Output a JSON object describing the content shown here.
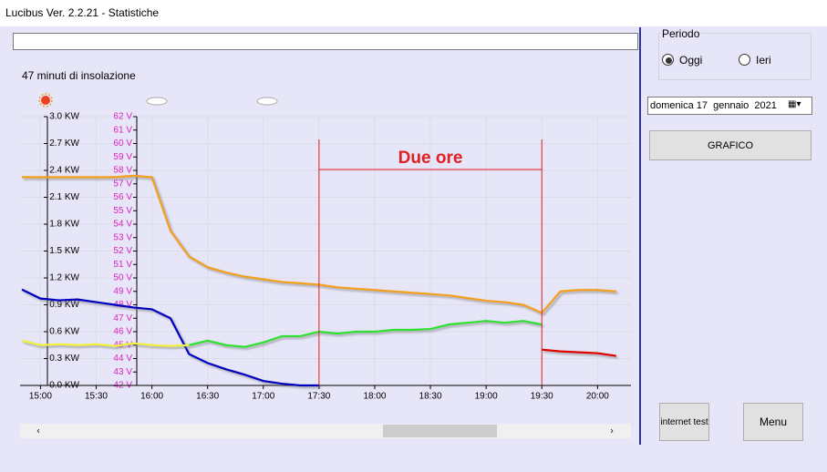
{
  "window": {
    "title": "Lucibus Ver. 2.2.21 - Statistiche"
  },
  "stats": {
    "sunshine": "47 minuti di insolazione"
  },
  "chart_data": {
    "type": "line",
    "x": [
      890,
      900,
      910,
      920,
      930,
      940,
      950,
      960,
      970,
      980,
      990,
      1000,
      1010,
      1020,
      1030,
      1040,
      1050,
      1060,
      1070,
      1080,
      1090,
      1100,
      1110,
      1120,
      1130,
      1140,
      1150,
      1160,
      1170,
      1180,
      1190,
      1200,
      1210
    ],
    "xlim": [
      889,
      1218
    ],
    "xticks": [
      {
        "value": 900,
        "label": "15:00"
      },
      {
        "value": 930,
        "label": "15:30"
      },
      {
        "value": 960,
        "label": "16:00"
      },
      {
        "value": 990,
        "label": "16:30"
      },
      {
        "value": 1020,
        "label": "17:00"
      },
      {
        "value": 1050,
        "label": "17:30"
      },
      {
        "value": 1080,
        "label": "18:00"
      },
      {
        "value": 1110,
        "label": "18:30"
      },
      {
        "value": 1140,
        "label": "19:00"
      },
      {
        "value": 1170,
        "label": "19:30"
      },
      {
        "value": 1200,
        "label": "20:00"
      }
    ],
    "ylim": [
      0,
      3
    ],
    "yticks": [
      {
        "value": 0,
        "label": "0.0 KW"
      },
      {
        "value": 0.3,
        "label": "0.3 KW"
      },
      {
        "value": 0.6,
        "label": "0.6 KW"
      },
      {
        "value": 0.9,
        "label": "0.9 KW"
      },
      {
        "value": 1.2,
        "label": "1.2 KW"
      },
      {
        "value": 1.5,
        "label": "1.5 KW"
      },
      {
        "value": 1.8,
        "label": "1.8 KW"
      },
      {
        "value": 2.1,
        "label": "2.1 KW"
      },
      {
        "value": 2.4,
        "label": "2.4 KW"
      },
      {
        "value": 2.7,
        "label": "2.7 KW"
      },
      {
        "value": 3,
        "label": "3.0 KW"
      }
    ],
    "y2lim": [
      42,
      62
    ],
    "y2ticks": [
      {
        "value": 42,
        "label": "42 V"
      },
      {
        "value": 43,
        "label": "43 V"
      },
      {
        "value": 44,
        "label": "44 V"
      },
      {
        "value": 45,
        "label": "45 V"
      },
      {
        "value": 46,
        "label": "46 V"
      },
      {
        "value": 47,
        "label": "47 V"
      },
      {
        "value": 48,
        "label": "48 V"
      },
      {
        "value": 49,
        "label": "49 V"
      },
      {
        "value": 50,
        "label": "50 V"
      },
      {
        "value": 51,
        "label": "51 V"
      },
      {
        "value": 52,
        "label": "52 V"
      },
      {
        "value": 53,
        "label": "53 V"
      },
      {
        "value": 54,
        "label": "54 V"
      },
      {
        "value": 55,
        "label": "55 V"
      },
      {
        "value": 56,
        "label": "56 V"
      },
      {
        "value": 57,
        "label": "57 V"
      },
      {
        "value": 58,
        "label": "58 V"
      },
      {
        "value": 59,
        "label": "59 V"
      },
      {
        "value": 60,
        "label": "60 V"
      },
      {
        "value": 61,
        "label": "61 V"
      },
      {
        "value": 62,
        "label": "62 V"
      }
    ],
    "grid": true,
    "series": [
      {
        "color": "#f2a01e",
        "axis": "y2",
        "values": [
          57.5,
          57.5,
          57.5,
          57.5,
          57.5,
          57.5,
          57.6,
          57.5,
          53.5,
          51.6,
          50.8,
          50.4,
          50.1,
          49.9,
          49.7,
          49.6,
          49.5,
          49.3,
          49.2,
          49.1,
          49.0,
          48.9,
          48.8,
          48.7,
          48.5,
          48.3,
          48.2,
          48.0,
          47.4,
          49.0,
          49.1,
          49.1,
          49.0
        ]
      },
      {
        "color": "#0000c0",
        "values": [
          1.07,
          0.97,
          0.95,
          0.96,
          0.93,
          0.9,
          0.87,
          0.85,
          0.75,
          0.35,
          0.25,
          0.18,
          0.12,
          0.05,
          0.02,
          0,
          0,
          null,
          null,
          null,
          null,
          null,
          null,
          null,
          null,
          null,
          null,
          null,
          null,
          null,
          null,
          null,
          null
        ]
      },
      {
        "color": "#f0f040",
        "values": [
          0.5,
          0.45,
          0.46,
          0.45,
          0.46,
          0.44,
          0.47,
          0.45,
          0.44,
          0.45,
          null,
          null,
          null,
          null,
          null,
          null,
          null,
          null,
          null,
          null,
          null,
          null,
          null,
          null,
          null,
          null,
          null,
          null,
          null,
          null,
          null,
          null,
          null
        ]
      },
      {
        "color": "#30e030",
        "values": [
          null,
          null,
          null,
          null,
          null,
          null,
          null,
          null,
          null,
          0.45,
          0.5,
          0.45,
          0.43,
          0.48,
          0.55,
          0.55,
          0.6,
          0.58,
          0.6,
          0.6,
          0.62,
          0.62,
          0.63,
          0.68,
          0.7,
          0.72,
          0.7,
          0.72,
          0.68,
          null,
          null,
          null,
          null
        ]
      },
      {
        "color": "#e00000",
        "values": [
          null,
          null,
          null,
          null,
          null,
          null,
          null,
          null,
          null,
          null,
          null,
          null,
          null,
          null,
          null,
          null,
          null,
          null,
          null,
          null,
          null,
          null,
          null,
          null,
          null,
          null,
          null,
          null,
          0.4,
          0.38,
          0.37,
          0.36,
          0.33
        ]
      }
    ],
    "annotations": [
      {
        "text": "Due ore",
        "x": [
          1050,
          1170
        ]
      }
    ]
  },
  "controls": {
    "period": "Periodo",
    "today": "Oggi",
    "yesterday": "Ieri",
    "date": "domenica 17  gennaio  2021",
    "graph_button": "GRAFICO",
    "internet_button": "internet test",
    "menu_button": "Menu"
  }
}
